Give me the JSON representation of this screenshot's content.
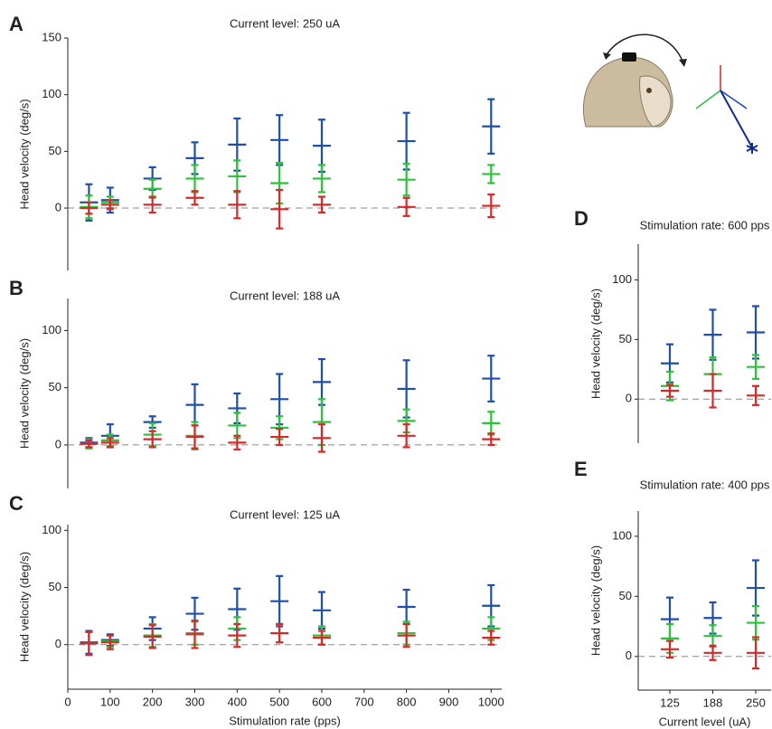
{
  "chart_data": [
    {
      "type": "errorbar",
      "panel": "A",
      "title": "Current level: 250 uA",
      "y_label": "Head velocity (deg/s)",
      "x": [
        50,
        100,
        200,
        300,
        400,
        500,
        600,
        800,
        1000
      ],
      "xlim": [
        0,
        1025
      ],
      "ylim": [
        -55,
        150
      ],
      "yticks": [
        0,
        50,
        100,
        150
      ],
      "hline": 0,
      "series": [
        {
          "color": "#1f4fa8",
          "values": [
            5,
            7,
            26,
            44,
            56,
            60,
            55,
            59,
            72
          ],
          "errors": [
            16,
            11,
            10,
            14,
            23,
            22,
            23,
            25,
            24
          ]
        },
        {
          "color": "#2ec13b",
          "values": [
            1,
            5,
            17,
            26,
            28,
            22,
            26,
            25,
            30
          ],
          "errors": [
            10,
            5,
            8,
            12,
            14,
            18,
            12,
            14,
            8
          ]
        },
        {
          "color": "#d42a2a",
          "values": [
            0,
            3,
            3,
            9,
            3,
            -1,
            3,
            1,
            2
          ],
          "errors": [
            5,
            4,
            7,
            6,
            12,
            17,
            7,
            8,
            10
          ]
        }
      ]
    },
    {
      "type": "errorbar",
      "panel": "B",
      "title": "Current level: 188 uA",
      "y_label": "Head velocity (deg/s)",
      "x": [
        50,
        100,
        200,
        300,
        400,
        500,
        600,
        800,
        1000
      ],
      "xlim": [
        0,
        1025
      ],
      "ylim": [
        -38,
        128
      ],
      "yticks": [
        0,
        50,
        100
      ],
      "hline": 0,
      "series": [
        {
          "color": "#1f4fa8",
          "values": [
            2,
            8,
            20,
            35,
            32,
            40,
            55,
            49,
            58
          ],
          "errors": [
            4,
            10,
            5,
            18,
            13,
            22,
            20,
            25,
            20
          ]
        },
        {
          "color": "#2ec13b",
          "values": [
            1,
            4,
            9,
            8,
            17,
            15,
            20,
            21,
            19
          ],
          "errors": [
            4,
            5,
            10,
            12,
            11,
            10,
            20,
            10,
            10
          ]
        },
        {
          "color": "#d42a2a",
          "values": [
            1,
            2,
            5,
            7,
            2,
            7,
            6,
            8,
            5
          ],
          "errors": [
            3,
            4,
            7,
            10,
            6,
            7,
            12,
            10,
            5
          ]
        }
      ]
    },
    {
      "type": "errorbar",
      "panel": "C",
      "title": "Current level: 125 uA",
      "y_label": "Head velocity (deg/s)",
      "x_label": "Stimulation rate (pps)",
      "x": [
        50,
        100,
        200,
        300,
        400,
        500,
        600,
        800,
        1000
      ],
      "xlim": [
        0,
        1025
      ],
      "xticks": [
        0,
        100,
        200,
        300,
        400,
        500,
        600,
        700,
        800,
        900,
        1000
      ],
      "ylim": [
        -39,
        105
      ],
      "yticks": [
        0,
        50,
        100
      ],
      "hline": 0,
      "series": [
        {
          "color": "#1f4fa8",
          "values": [
            2,
            4,
            14,
            27,
            31,
            38,
            30,
            33,
            34
          ],
          "errors": [
            10,
            5,
            10,
            14,
            18,
            22,
            16,
            15,
            18
          ]
        },
        {
          "color": "#2ec13b",
          "values": [
            1,
            3,
            8,
            10,
            14,
            10,
            8,
            10,
            14
          ],
          "errors": [
            10,
            5,
            10,
            10,
            10,
            8,
            8,
            10,
            10
          ]
        },
        {
          "color": "#d42a2a",
          "values": [
            1,
            2,
            7,
            9,
            8,
            10,
            6,
            8,
            6
          ],
          "errors": [
            10,
            6,
            10,
            12,
            10,
            8,
            6,
            10,
            6
          ]
        }
      ]
    },
    {
      "type": "errorbar",
      "panel": "D",
      "title": "Stimulation rate: 600 pps",
      "y_label": "Head velocity (deg/s)",
      "categories": [
        null,
        null,
        null
      ],
      "ylim": [
        -37,
        130
      ],
      "yticks": [
        0,
        50,
        100
      ],
      "hline": 0,
      "series": [
        {
          "color": "#1f4fa8",
          "values": [
            30,
            54,
            56
          ],
          "errors": [
            16,
            21,
            22
          ]
        },
        {
          "color": "#2ec13b",
          "values": [
            11,
            21,
            27
          ],
          "errors": [
            12,
            14,
            10
          ]
        },
        {
          "color": "#d42a2a",
          "values": [
            7,
            7,
            3
          ],
          "errors": [
            5,
            14,
            8
          ]
        }
      ]
    },
    {
      "type": "errorbar",
      "panel": "E",
      "title": "Stimulation rate: 400 pps",
      "y_label": "Head velocity (deg/s)",
      "x_label": "Current level (uA)",
      "categories": [
        "125",
        "188",
        "250"
      ],
      "ylim": [
        -28,
        121
      ],
      "yticks": [
        0,
        50,
        100
      ],
      "hline": 0,
      "series": [
        {
          "color": "#1f4fa8",
          "values": [
            31,
            32,
            57
          ],
          "errors": [
            18,
            13,
            23
          ]
        },
        {
          "color": "#2ec13b",
          "values": [
            15,
            17,
            28
          ],
          "errors": [
            12,
            9,
            14
          ]
        },
        {
          "color": "#d42a2a",
          "values": [
            6,
            3,
            3
          ],
          "errors": [
            7,
            6,
            13
          ]
        }
      ]
    }
  ]
}
